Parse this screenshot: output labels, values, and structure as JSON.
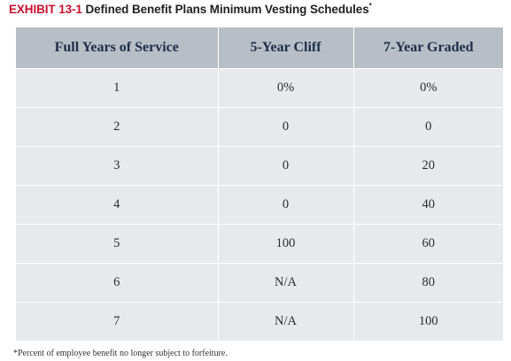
{
  "exhibit": {
    "number": "EXHIBIT 13-1",
    "title": "Defined Benefit Plans Minimum Vesting Schedules",
    "asterisk": "*"
  },
  "table": {
    "headers": [
      "Full Years of Service",
      "5-Year Cliff",
      "7-Year Graded"
    ],
    "rows": [
      [
        "1",
        "0%",
        "0%"
      ],
      [
        "2",
        "0",
        "0"
      ],
      [
        "3",
        "0",
        "20"
      ],
      [
        "4",
        "0",
        "40"
      ],
      [
        "5",
        "100",
        "60"
      ],
      [
        "6",
        "N/A",
        "80"
      ],
      [
        "7",
        "N/A",
        "100"
      ]
    ]
  },
  "footnote": "*Percent of employee benefit no longer subject to forfeiture."
}
